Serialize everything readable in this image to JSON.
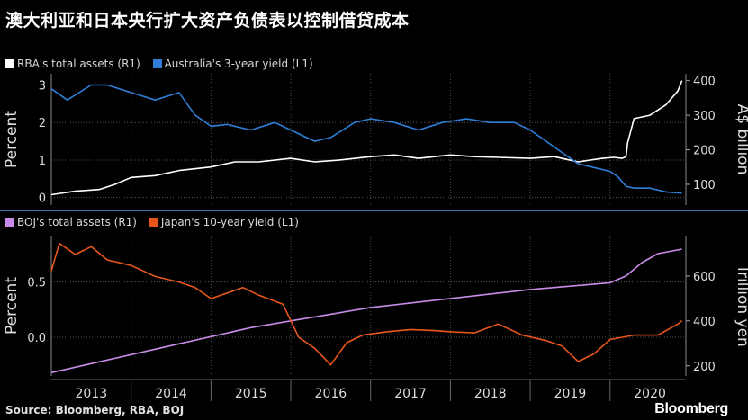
{
  "title": "澳大利亚和日本央行扩大资产负债表以控制借贷成本",
  "source": "Source: Bloomberg, RBA, BOJ",
  "brand": "Bloomberg",
  "colors": {
    "background": "#000000",
    "white_series": "#ffffff",
    "blue_series": "#2f7fd8",
    "purple_series": "#c98ae8",
    "orange_series": "#e8561c",
    "divider": "#3a6ea8",
    "grid": "#555555"
  },
  "chart_data": [
    {
      "type": "line",
      "panel": "top",
      "left_axis": {
        "label": "Percent",
        "range": [
          -0.2,
          3.3
        ],
        "ticks": [
          "0",
          "1",
          "2",
          "3"
        ],
        "tick_values": [
          0,
          1,
          2,
          3
        ]
      },
      "right_axis": {
        "label": "A$ billion",
        "range": [
          40,
          420
        ],
        "ticks": [
          "100",
          "200",
          "300",
          "400"
        ],
        "tick_values": [
          100,
          200,
          300,
          400
        ]
      },
      "x_range": [
        2013.0,
        2020.95
      ],
      "series": [
        {
          "name": "RBA's total assets (R1)",
          "axis": "right",
          "color": "#ffffff",
          "x": [
            2013.0,
            2013.3,
            2013.6,
            2013.8,
            2014.0,
            2014.3,
            2014.6,
            2015.0,
            2015.3,
            2015.6,
            2016.0,
            2016.3,
            2016.6,
            2017.0,
            2017.3,
            2017.6,
            2018.0,
            2018.3,
            2018.6,
            2019.0,
            2019.3,
            2019.6,
            2019.9,
            2020.05,
            2020.15,
            2020.2,
            2020.22,
            2020.3,
            2020.5,
            2020.7,
            2020.85,
            2020.9
          ],
          "values": [
            70,
            80,
            85,
            100,
            120,
            125,
            140,
            150,
            165,
            165,
            175,
            165,
            170,
            180,
            185,
            175,
            185,
            180,
            178,
            175,
            180,
            165,
            175,
            178,
            175,
            180,
            220,
            290,
            300,
            330,
            370,
            400
          ]
        },
        {
          "name": "Australia's 3-year yield (L1)",
          "axis": "left",
          "color": "#2f7fd8",
          "x": [
            2013.0,
            2013.2,
            2013.5,
            2013.7,
            2014.0,
            2014.3,
            2014.6,
            2014.8,
            2015.0,
            2015.2,
            2015.5,
            2015.8,
            2016.0,
            2016.3,
            2016.5,
            2016.8,
            2017.0,
            2017.3,
            2017.6,
            2017.9,
            2018.2,
            2018.5,
            2018.8,
            2019.0,
            2019.2,
            2019.4,
            2019.6,
            2019.8,
            2020.0,
            2020.1,
            2020.2,
            2020.3,
            2020.5,
            2020.7,
            2020.9
          ],
          "values": [
            2.9,
            2.6,
            3.0,
            3.0,
            2.8,
            2.6,
            2.8,
            2.2,
            1.9,
            1.95,
            1.8,
            2.0,
            1.8,
            1.5,
            1.6,
            2.0,
            2.1,
            2.0,
            1.8,
            2.0,
            2.1,
            2.0,
            2.0,
            1.8,
            1.5,
            1.2,
            0.9,
            0.8,
            0.7,
            0.55,
            0.3,
            0.25,
            0.25,
            0.15,
            0.12
          ]
        }
      ]
    },
    {
      "type": "line",
      "panel": "bottom",
      "left_axis": {
        "label": "Percent",
        "range": [
          -0.35,
          0.92
        ],
        "ticks": [
          "0.0",
          "0.5"
        ],
        "tick_values": [
          0.0,
          0.5
        ]
      },
      "right_axis": {
        "label": "Trillion yen",
        "range": [
          155,
          780
        ],
        "ticks": [
          "200",
          "400",
          "600"
        ],
        "tick_values": [
          200,
          400,
          600
        ]
      },
      "x_range": [
        2013.0,
        2020.95
      ],
      "series": [
        {
          "name": "BOJ's total assets (R1)",
          "axis": "right",
          "color": "#c98ae8",
          "x": [
            2013.0,
            2013.5,
            2014.0,
            2014.5,
            2015.0,
            2015.5,
            2016.0,
            2016.5,
            2017.0,
            2017.5,
            2018.0,
            2018.5,
            2019.0,
            2019.5,
            2020.0,
            2020.2,
            2020.4,
            2020.6,
            2020.9
          ],
          "values": [
            170,
            210,
            250,
            290,
            330,
            370,
            400,
            430,
            460,
            480,
            500,
            520,
            540,
            555,
            570,
            600,
            660,
            700,
            720
          ]
        },
        {
          "name": "Japan's 10-year yield (L1)",
          "axis": "left",
          "color": "#e8561c",
          "x": [
            2013.0,
            2013.1,
            2013.2,
            2013.3,
            2013.5,
            2013.7,
            2014.0,
            2014.3,
            2014.6,
            2014.8,
            2015.0,
            2015.2,
            2015.4,
            2015.6,
            2015.9,
            2016.1,
            2016.3,
            2016.5,
            2016.7,
            2016.9,
            2017.2,
            2017.5,
            2017.8,
            2018.0,
            2018.3,
            2018.6,
            2018.9,
            2019.2,
            2019.4,
            2019.6,
            2019.8,
            2020.0,
            2020.3,
            2020.6,
            2020.85,
            2020.9
          ],
          "values": [
            0.6,
            0.85,
            0.8,
            0.75,
            0.82,
            0.7,
            0.65,
            0.55,
            0.5,
            0.45,
            0.35,
            0.4,
            0.45,
            0.38,
            0.3,
            0.0,
            -0.1,
            -0.25,
            -0.05,
            0.02,
            0.05,
            0.07,
            0.06,
            0.05,
            0.04,
            0.12,
            0.02,
            -0.03,
            -0.08,
            -0.22,
            -0.15,
            -0.02,
            0.02,
            0.02,
            0.12,
            0.15
          ]
        }
      ]
    }
  ],
  "x_axis": {
    "labels": [
      "2013",
      "2014",
      "2015",
      "2016",
      "2017",
      "2018",
      "2019",
      "2020"
    ],
    "centers": [
      2013.5,
      2014.5,
      2015.5,
      2016.5,
      2017.5,
      2018.5,
      2019.5,
      2020.5
    ],
    "dividers": [
      2014.0,
      2015.0,
      2016.0,
      2017.0,
      2018.0,
      2019.0,
      2020.0
    ]
  }
}
